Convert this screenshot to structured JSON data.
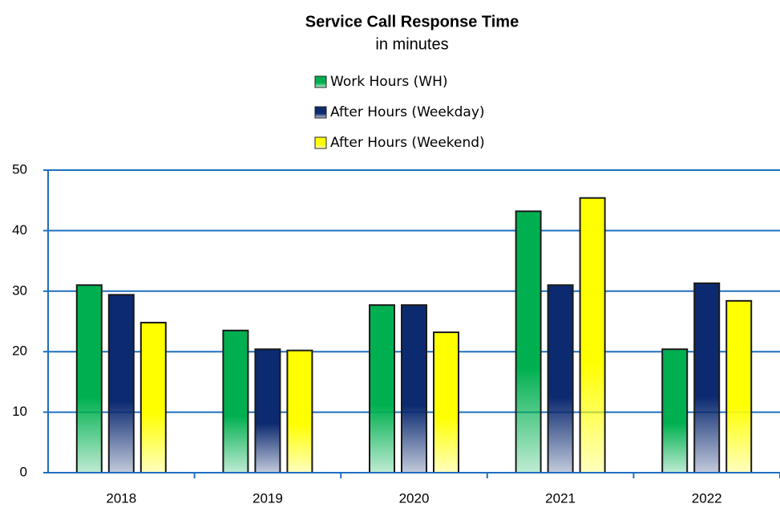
{
  "chart_data": {
    "type": "bar",
    "title": "Service Call Response Time",
    "subtitle": "in minutes",
    "categories": [
      "2018",
      "2019",
      "2020",
      "2021",
      "2022"
    ],
    "series": [
      {
        "name": "Work Hours (WH)",
        "color": "#00b050",
        "values": [
          31.0,
          23.5,
          27.7,
          43.2,
          20.4
        ]
      },
      {
        "name": "After Hours (Weekday)",
        "color": "#0c2a70",
        "values": [
          29.4,
          20.4,
          27.7,
          31.0,
          31.3
        ]
      },
      {
        "name": "After Hours (Weekend)",
        "color": "#ffff00",
        "values": [
          24.8,
          20.2,
          23.2,
          45.4,
          28.4
        ]
      }
    ],
    "ylim": [
      0,
      50
    ],
    "yticks": [
      0,
      10,
      20,
      30,
      40,
      50
    ],
    "grid": true,
    "legend": "top"
  }
}
